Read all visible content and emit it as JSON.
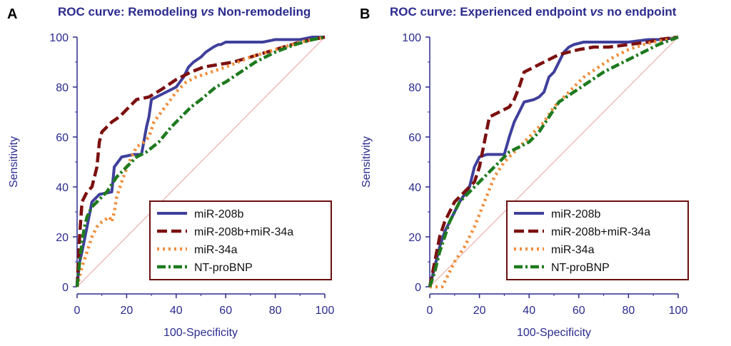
{
  "colors": {
    "axis": "#2b2b8f",
    "frame": "#6b0f0f",
    "diagonal": "#e7a0a0",
    "text": "#111111"
  },
  "chart_data": [
    {
      "panel_letter": "A",
      "type": "line",
      "title_parts": [
        {
          "text": "ROC curve: Remodeling ",
          "italic": false
        },
        {
          "text": "vs",
          "italic": true
        },
        {
          "text": " Non-remodeling",
          "italic": false
        }
      ],
      "xlabel": "100-Specificity",
      "ylabel": "Sensitivity",
      "xlim": [
        0,
        100
      ],
      "ylim": [
        0,
        100
      ],
      "xticks": [
        0,
        20,
        40,
        60,
        80,
        100
      ],
      "yticks": [
        0,
        20,
        40,
        60,
        80,
        100
      ],
      "diagonal_reference": true,
      "legend_position": "bottom-right",
      "series": [
        {
          "name": "miR-208b",
          "color": "#3f3f9c",
          "style": "solid",
          "x": [
            0,
            0.5,
            1,
            2,
            4,
            6,
            9,
            14,
            15,
            18,
            23,
            26,
            28,
            29,
            30,
            32,
            38,
            40,
            43,
            45,
            47,
            50,
            52,
            55,
            57,
            58,
            60,
            62,
            65,
            70,
            75,
            80,
            85,
            90,
            95,
            100
          ],
          "y": [
            0,
            5,
            10,
            14,
            24,
            34,
            37,
            38,
            48,
            52,
            53,
            53,
            64,
            68,
            75,
            76,
            79,
            80,
            84,
            88,
            90,
            92,
            94,
            96,
            97,
            97,
            98,
            98,
            98,
            98,
            98,
            99,
            99,
            99,
            100,
            100
          ]
        },
        {
          "name": "miR-208b+miR-34a",
          "color": "#7c1010",
          "style": "dashed",
          "x": [
            0,
            1,
            2,
            4,
            6,
            8,
            9,
            10,
            14,
            17,
            21,
            24,
            29,
            34,
            40,
            46,
            51,
            57,
            63,
            70,
            80,
            90,
            100
          ],
          "y": [
            0,
            20,
            34,
            38,
            40,
            48,
            58,
            62,
            66,
            68,
            72,
            75,
            76,
            79,
            83,
            86,
            88,
            89,
            90,
            92,
            95,
            98,
            100
          ]
        },
        {
          "name": "miR-34a",
          "color": "#f08d3a",
          "style": "dotted",
          "x": [
            0,
            2,
            4,
            6,
            8,
            10,
            13,
            14,
            15,
            16,
            18,
            21,
            24,
            27,
            29,
            31,
            34,
            37,
            40,
            44,
            48,
            54,
            60,
            70,
            80,
            90,
            100
          ],
          "y": [
            0,
            8,
            14,
            20,
            24,
            26,
            28,
            26,
            30,
            36,
            42,
            50,
            56,
            58,
            60,
            66,
            70,
            74,
            78,
            82,
            84,
            86,
            88,
            92,
            95,
            98,
            100
          ]
        },
        {
          "name": "NT-proBNP",
          "color": "#1e7a1e",
          "style": "dashdot",
          "x": [
            0,
            1,
            2,
            3,
            4,
            6,
            8,
            12,
            16,
            20,
            24,
            28,
            33,
            38,
            42,
            46,
            50,
            56,
            60,
            66,
            72,
            80,
            88,
            95,
            100
          ],
          "y": [
            0,
            10,
            18,
            24,
            28,
            32,
            34,
            38,
            44,
            48,
            52,
            54,
            58,
            64,
            68,
            72,
            75,
            80,
            82,
            86,
            90,
            94,
            97,
            99,
            100
          ]
        }
      ]
    },
    {
      "panel_letter": "B",
      "type": "line",
      "title_parts": [
        {
          "text": "ROC curve: Experienced endpoint ",
          "italic": false
        },
        {
          "text": "vs",
          "italic": true
        },
        {
          "text": " no endpoint",
          "italic": false
        }
      ],
      "xlabel": "100-Specificity",
      "ylabel": "Sensitivity",
      "xlim": [
        0,
        100
      ],
      "ylim": [
        0,
        100
      ],
      "xticks": [
        0,
        20,
        40,
        60,
        80,
        100
      ],
      "yticks": [
        0,
        20,
        40,
        60,
        80,
        100
      ],
      "diagonal_reference": true,
      "legend_position": "bottom-right",
      "series": [
        {
          "name": "miR-208b",
          "color": "#3f3f9c",
          "style": "solid",
          "x": [
            0,
            2,
            4,
            6,
            8,
            10,
            12,
            16,
            18,
            20,
            23,
            26,
            30,
            32,
            34,
            36,
            38,
            42,
            44,
            46,
            48,
            50,
            52,
            54,
            56,
            58,
            62,
            66,
            72,
            80,
            88,
            94,
            100
          ],
          "y": [
            0,
            8,
            16,
            22,
            26,
            30,
            34,
            40,
            48,
            52,
            53,
            53,
            53,
            60,
            66,
            70,
            74,
            75,
            76,
            78,
            84,
            86,
            90,
            94,
            96,
            97,
            98,
            98,
            98,
            98,
            99,
            99,
            100
          ]
        },
        {
          "name": "miR-208b+miR-34a",
          "color": "#7c1010",
          "style": "dashed",
          "x": [
            0,
            2,
            4,
            6,
            8,
            10,
            14,
            18,
            20,
            22,
            24,
            28,
            32,
            34,
            36,
            38,
            40,
            44,
            48,
            52,
            56,
            60,
            66,
            72,
            80,
            88,
            92,
            100
          ],
          "y": [
            0,
            10,
            20,
            26,
            30,
            34,
            38,
            42,
            48,
            58,
            68,
            70,
            72,
            75,
            80,
            86,
            87,
            89,
            91,
            93,
            94,
            95,
            96,
            96,
            97,
            98,
            99,
            100
          ]
        },
        {
          "name": "miR-34a",
          "color": "#f08d3a",
          "style": "dotted",
          "x": [
            0,
            5,
            7,
            10,
            14,
            18,
            22,
            26,
            30,
            34,
            38,
            42,
            46,
            50,
            56,
            62,
            68,
            74,
            80,
            86,
            90,
            96,
            100
          ],
          "y": [
            0,
            0,
            4,
            10,
            16,
            24,
            34,
            44,
            50,
            54,
            58,
            62,
            66,
            72,
            78,
            84,
            88,
            92,
            95,
            97,
            98,
            99,
            100
          ]
        },
        {
          "name": "NT-proBNP",
          "color": "#1e7a1e",
          "style": "dashdot",
          "x": [
            0,
            2,
            4,
            6,
            8,
            10,
            12,
            16,
            20,
            24,
            28,
            32,
            36,
            40,
            44,
            48,
            52,
            58,
            64,
            70,
            78,
            86,
            92,
            100
          ],
          "y": [
            0,
            6,
            14,
            20,
            26,
            30,
            34,
            38,
            42,
            46,
            50,
            54,
            56,
            58,
            62,
            68,
            74,
            78,
            82,
            86,
            90,
            94,
            97,
            100
          ]
        }
      ]
    }
  ]
}
